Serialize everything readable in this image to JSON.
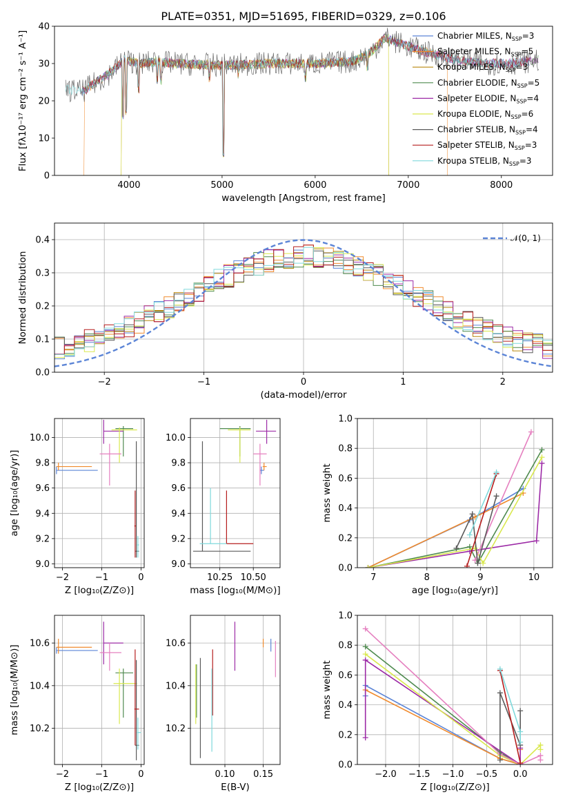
{
  "title": "PLATE=0351, MJD=51695, FIBERID=0329, z=0.106",
  "palette": {
    "Chabrier MILES": "#5b84d6",
    "Salpeter MILES": "#f08a2c",
    "Kroupa MILES": "#b8860b",
    "Chabrier ELODIE": "#4e8a4e",
    "Salpeter ELODIE": "#9c2aa6",
    "Kroupa ELODIE": "#d9e84e",
    "Chabrier STELIB": "#5a5a5a",
    "Salpeter STELIB": "#b51d1d",
    "Kroupa STELIB": "#7fd9db"
  },
  "chart_data": [
    {
      "id": "spectrum",
      "type": "line",
      "xlabel": "wavelength [Angstrom, rest frame]",
      "ylabel": "Flux [fλ10⁻¹⁷ erg cm⁻² s⁻¹ A⁻¹]",
      "xlim": [
        3200,
        8550
      ],
      "ylim": [
        0,
        40
      ],
      "xticks": [
        "4000",
        "5000",
        "6000",
        "7000",
        "8000"
      ],
      "yticks": [
        "0",
        "10",
        "20",
        "30",
        "40"
      ],
      "grid": false,
      "legend_position": "top-right",
      "legend": [
        {
          "name": "Chabrier MILES, N",
          "sub": "SSP",
          "tail": "=3",
          "key": "Chabrier MILES"
        },
        {
          "name": "Salpeter MILES, N",
          "sub": "SSP",
          "tail": "=5",
          "key": "Salpeter MILES"
        },
        {
          "name": "Kroupa MILES, N",
          "sub": "SSP",
          "tail": "=3",
          "key": "Kroupa MILES"
        },
        {
          "name": "Chabrier ELODIE, N",
          "sub": "SSP",
          "tail": "=5",
          "key": "Chabrier ELODIE"
        },
        {
          "name": "Salpeter ELODIE, N",
          "sub": "SSP",
          "tail": "=4",
          "key": "Salpeter ELODIE"
        },
        {
          "name": "Kroupa ELODIE, N",
          "sub": "SSP",
          "tail": "=6",
          "key": "Kroupa ELODIE"
        },
        {
          "name": "Chabrier STELIB, N",
          "sub": "SSP",
          "tail": "=4",
          "key": "Chabrier STELIB"
        },
        {
          "name": "Salpeter STELIB, N",
          "sub": "SSP",
          "tail": "=3",
          "key": "Salpeter STELIB"
        },
        {
          "name": "Kroupa STELIB, N",
          "sub": "SSP",
          "tail": "=3",
          "key": "Kroupa STELIB"
        }
      ],
      "continuum": [
        [
          3320,
          23
        ],
        [
          3500,
          22.5
        ],
        [
          3650,
          25
        ],
        [
          3800,
          27.5
        ],
        [
          3950,
          31
        ],
        [
          4100,
          30
        ],
        [
          4300,
          30.5
        ],
        [
          4500,
          30
        ],
        [
          5000,
          29.5
        ],
        [
          5500,
          30
        ],
        [
          6000,
          30
        ],
        [
          6400,
          30.5
        ],
        [
          6600,
          33
        ],
        [
          6750,
          37
        ],
        [
          6950,
          35
        ],
        [
          7200,
          33
        ],
        [
          7500,
          31
        ],
        [
          7800,
          30
        ],
        [
          8100,
          30
        ],
        [
          8400,
          31
        ]
      ],
      "absorption_lines": [
        [
          3934,
          15
        ],
        [
          3969,
          16
        ],
        [
          4102,
          22
        ],
        [
          4304,
          24
        ],
        [
          4341,
          24
        ],
        [
          4861,
          25
        ],
        [
          5015,
          4
        ],
        [
          5176,
          26
        ],
        [
          5893,
          25
        ],
        [
          6563,
          28
        ]
      ],
      "series_cuts": [
        {
          "key": "Salpeter MILES",
          "from": 3520,
          "to": 7420
        },
        {
          "key": "Kroupa MILES",
          "from": 3920,
          "to": 6790
        },
        {
          "key": "Kroupa ELODIE",
          "from": 3920,
          "to": 6790
        }
      ]
    },
    {
      "id": "residuals",
      "type": "histogram",
      "xlabel": "(data-model)/error",
      "ylabel": "Normed distribution",
      "xlim": [
        -2.5,
        2.5
      ],
      "ylim": [
        0,
        0.45
      ],
      "xticks": [
        "−2",
        "−1",
        "0",
        "1",
        "2"
      ],
      "yticks": [
        "0.0",
        "0.1",
        "0.2",
        "0.3",
        "0.4"
      ],
      "grid": true,
      "legend": [
        {
          "name": "𝒩(0, 1)",
          "style": "dashed"
        }
      ],
      "bin_width": 0.1,
      "normal_curve": {
        "mean": 0,
        "sigma": 1,
        "color": "#5b84d6"
      }
    },
    {
      "id": "age_vs_Z",
      "type": "errorbar",
      "xlabel": "Z [log₁₀(Z/Z⊙)]",
      "ylabel": "age  [log₁₀(age/yr)]",
      "xlim": [
        -2.2,
        0.08
      ],
      "ylim": [
        8.97,
        10.15
      ],
      "xticks": [
        "−2",
        "−1",
        "0"
      ],
      "yticks": [
        "9.0",
        "9.2",
        "9.4",
        "9.6",
        "9.8",
        "10.0"
      ],
      "grid": true,
      "points": [
        {
          "key": "Chabrier MILES",
          "x": -2.15,
          "xmin": -2.15,
          "xmax": -1.1,
          "y": 9.74,
          "ymin": 9.71,
          "ymax": 9.77
        },
        {
          "key": "Salpeter MILES",
          "x": -2.1,
          "xmin": -2.15,
          "xmax": -1.25,
          "y": 9.77,
          "ymin": 9.74,
          "ymax": 9.8
        },
        {
          "key": "Chabrier ELODIE",
          "x": -0.45,
          "xmin": -0.65,
          "xmax": -0.2,
          "y": 10.07,
          "ymin": 9.85,
          "ymax": 10.09
        },
        {
          "key": "Salpeter ELODIE",
          "x": -0.95,
          "xmin": -0.95,
          "xmax": -0.45,
          "y": 10.05,
          "ymin": 9.95,
          "ymax": 10.14
        },
        {
          "key": "Kroupa ELODIE",
          "x": -0.55,
          "xmin": -0.75,
          "xmax": -0.1,
          "y": 10.06,
          "ymin": 9.8,
          "ymax": 10.08
        },
        {
          "key": "Salpeter ELODIE",
          "x": -0.8,
          "xmin": -1.05,
          "xmax": -0.5,
          "y": 9.87,
          "ymin": 9.62,
          "ymax": 9.95,
          "color": "#e57fbf"
        },
        {
          "key": "Chabrier STELIB",
          "x": -0.12,
          "xmin": -0.15,
          "xmax": -0.05,
          "y": 9.1,
          "ymin": 9.05,
          "ymax": 9.97
        },
        {
          "key": "Salpeter STELIB",
          "x": -0.15,
          "xmin": -0.17,
          "xmax": -0.13,
          "y": 9.3,
          "ymin": 9.05,
          "ymax": 9.58
        },
        {
          "key": "Kroupa STELIB",
          "x": -0.08,
          "xmin": -0.1,
          "xmax": -0.05,
          "y": 9.15,
          "ymin": 9.05,
          "ymax": 9.22
        }
      ]
    },
    {
      "id": "age_vs_mass",
      "type": "errorbar",
      "xlabel": "mass [log₁₀(M/M⊙)]",
      "ylabel": "",
      "xlim": [
        10.03,
        10.7
      ],
      "ylim": [
        8.97,
        10.15
      ],
      "xticks": [
        "10.25",
        "10.50"
      ],
      "yticks": [
        "9.0",
        "9.2",
        "9.4",
        "9.6",
        "9.8",
        "10.0"
      ],
      "grid": true,
      "points": [
        {
          "key": "Chabrier MILES",
          "x": 10.56,
          "xmin": 10.55,
          "xmax": 10.58,
          "y": 9.74,
          "ymin": 9.71,
          "ymax": 9.77
        },
        {
          "key": "Salpeter MILES",
          "x": 10.58,
          "xmin": 10.57,
          "xmax": 10.6,
          "y": 9.77,
          "ymin": 9.74,
          "ymax": 9.8
        },
        {
          "key": "Chabrier ELODIE",
          "x": 10.4,
          "xmin": 10.25,
          "xmax": 10.48,
          "y": 10.07,
          "ymin": 9.85,
          "ymax": 10.09
        },
        {
          "key": "Salpeter ELODIE",
          "x": 10.6,
          "xmin": 10.52,
          "xmax": 10.67,
          "y": 10.05,
          "ymin": 9.95,
          "ymax": 10.14
        },
        {
          "key": "Kroupa ELODIE",
          "x": 10.4,
          "xmin": 10.31,
          "xmax": 10.48,
          "y": 10.06,
          "ymin": 9.8,
          "ymax": 10.08
        },
        {
          "key": "Salpeter ELODIE",
          "x": 10.55,
          "xmin": 10.5,
          "xmax": 10.6,
          "y": 9.87,
          "ymin": 9.62,
          "ymax": 9.95,
          "color": "#e57fbf"
        },
        {
          "key": "Chabrier STELIB",
          "x": 10.12,
          "xmin": 10.05,
          "xmax": 10.48,
          "y": 9.1,
          "ymin": 9.1,
          "ymax": 9.97
        },
        {
          "key": "Salpeter STELIB",
          "x": 10.3,
          "xmin": 10.3,
          "xmax": 10.5,
          "y": 9.16,
          "ymin": 9.16,
          "ymax": 9.58
        },
        {
          "key": "Kroupa STELIB",
          "x": 10.18,
          "xmin": 10.1,
          "xmax": 10.3,
          "y": 9.16,
          "ymin": 9.16,
          "ymax": 9.6
        }
      ]
    },
    {
      "id": "weight_vs_age",
      "type": "line",
      "xlabel": "age  [log₁₀(age/yr)]",
      "ylabel": "mass weight",
      "xlim": [
        6.7,
        10.35
      ],
      "ylim": [
        0,
        1
      ],
      "xticks": [
        "7",
        "8",
        "9",
        "10"
      ],
      "yticks": [
        "0.0",
        "0.2",
        "0.4",
        "0.6",
        "0.8",
        "1.0"
      ],
      "grid": true,
      "series": [
        {
          "key": "Chabrier MILES",
          "x": [
            6.9,
            8.8,
            9.8
          ],
          "y": [
            0.0,
            0.32,
            0.53
          ]
        },
        {
          "key": "Salpeter MILES",
          "x": [
            6.9,
            8.9,
            9.8
          ],
          "y": [
            0.0,
            0.34,
            0.5
          ]
        },
        {
          "key": "Chabrier ELODIE",
          "x": [
            6.9,
            8.8,
            8.95,
            10.15
          ],
          "y": [
            0.0,
            0.14,
            0.03,
            0.79
          ]
        },
        {
          "key": "Salpeter ELODIE",
          "x": [
            6.9,
            8.8,
            10.05,
            10.15
          ],
          "y": [
            0.0,
            0.11,
            0.18,
            0.7
          ]
        },
        {
          "key": "Kroupa ELODIE",
          "x": [
            6.9,
            8.9,
            9.05,
            10.15
          ],
          "y": [
            0.0,
            0.13,
            0.03,
            0.74
          ]
        },
        {
          "key": "Salpeter ELODIE",
          "x": [
            8.9,
            9.95
          ],
          "y": [
            0.05,
            0.91
          ],
          "color": "#e57fbf"
        },
        {
          "key": "Chabrier STELIB",
          "x": [
            8.55,
            8.85,
            8.95,
            9.3
          ],
          "y": [
            0.13,
            0.36,
            0.03,
            0.48
          ]
        },
        {
          "key": "Salpeter STELIB",
          "x": [
            8.75,
            9.3
          ],
          "y": [
            0.01,
            0.63
          ]
        },
        {
          "key": "Kroupa STELIB",
          "x": [
            8.8,
            9.3
          ],
          "y": [
            0.22,
            0.64
          ]
        }
      ]
    },
    {
      "id": "mass_vs_Z",
      "type": "errorbar",
      "xlabel": "Z [log₁₀(Z/Z⊙)]",
      "ylabel": "mass [log₁₀(M/M⊙)]",
      "xlim": [
        -2.2,
        0.08
      ],
      "ylim": [
        10.03,
        10.73
      ],
      "xticks": [
        "−2",
        "−1",
        "0"
      ],
      "yticks": [
        "10.2",
        "10.4",
        "10.6"
      ],
      "grid": true,
      "points": [
        {
          "key": "Chabrier MILES",
          "x": -2.15,
          "xmin": -2.15,
          "xmax": -1.1,
          "y": 10.565,
          "ymin": 10.55,
          "ymax": 10.58
        },
        {
          "key": "Salpeter MILES",
          "x": -2.1,
          "xmin": -2.15,
          "xmax": -1.25,
          "y": 10.58,
          "ymin": 10.55,
          "ymax": 10.62
        },
        {
          "key": "Chabrier ELODIE",
          "x": -0.45,
          "xmin": -0.65,
          "xmax": -0.2,
          "y": 10.46,
          "ymin": 10.25,
          "ymax": 10.48
        },
        {
          "key": "Salpeter ELODIE",
          "x": -0.95,
          "xmin": -0.95,
          "xmax": -0.45,
          "y": 10.6,
          "ymin": 10.5,
          "ymax": 10.7
        },
        {
          "key": "Kroupa ELODIE",
          "x": -0.55,
          "xmin": -0.7,
          "xmax": -0.1,
          "y": 10.41,
          "ymin": 10.22,
          "ymax": 10.48
        },
        {
          "key": "Salpeter ELODIE",
          "x": -0.8,
          "xmin": -1.05,
          "xmax": -0.5,
          "y": 10.555,
          "ymin": 10.47,
          "ymax": 10.6,
          "color": "#e57fbf"
        },
        {
          "key": "Chabrier STELIB",
          "x": -0.12,
          "xmin": -0.15,
          "xmax": -0.05,
          "y": 10.12,
          "ymin": 10.05,
          "ymax": 10.52
        },
        {
          "key": "Salpeter STELIB",
          "x": -0.15,
          "xmin": -0.17,
          "xmax": -0.05,
          "y": 10.29,
          "ymin": 10.12,
          "ymax": 10.57
        },
        {
          "key": "Kroupa STELIB",
          "x": -0.08,
          "xmin": -0.1,
          "xmax": 0.0,
          "y": 10.18,
          "ymin": 10.1,
          "ymax": 10.25
        }
      ]
    },
    {
      "id": "mass_vs_EBV",
      "type": "errorbar",
      "xlabel": "E(B-V)",
      "ylabel": "",
      "xlim": [
        0.055,
        0.172
      ],
      "ylim": [
        10.03,
        10.73
      ],
      "xticks": [
        "0.10",
        "0.15"
      ],
      "yticks": [
        "10.2",
        "10.4",
        "10.6"
      ],
      "grid": true,
      "points": [
        {
          "key": "Chabrier MILES",
          "x": 0.16,
          "xmin": 0.16,
          "xmax": 0.16,
          "y": 10.6,
          "ymin": 10.56,
          "ymax": 10.62
        },
        {
          "key": "Salpeter MILES",
          "x": 0.15,
          "xmin": 0.15,
          "xmax": 0.15,
          "y": 10.6,
          "ymin": 10.58,
          "ymax": 10.62
        },
        {
          "key": "Chabrier ELODIE",
          "x": 0.063,
          "xmin": 0.063,
          "xmax": 0.063,
          "y": 10.4,
          "ymin": 10.25,
          "ymax": 10.5
        },
        {
          "key": "Salpeter ELODIE",
          "x": 0.113,
          "xmin": 0.113,
          "xmax": 0.113,
          "y": 10.6,
          "ymin": 10.47,
          "ymax": 10.7
        },
        {
          "key": "Kroupa ELODIE",
          "x": 0.062,
          "xmin": 0.062,
          "xmax": 0.062,
          "y": 10.36,
          "ymin": 10.22,
          "ymax": 10.5
        },
        {
          "key": "Salpeter ELODIE",
          "x": 0.166,
          "xmin": 0.166,
          "xmax": 0.166,
          "y": 10.55,
          "ymin": 10.44,
          "ymax": 10.61,
          "color": "#e57fbf"
        },
        {
          "key": "Chabrier STELIB",
          "x": 0.068,
          "xmin": 0.068,
          "xmax": 0.068,
          "y": 10.3,
          "ymin": 10.06,
          "ymax": 10.53
        },
        {
          "key": "Salpeter STELIB",
          "x": 0.084,
          "xmin": 0.084,
          "xmax": 0.084,
          "y": 10.4,
          "ymin": 10.26,
          "ymax": 10.57
        },
        {
          "key": "Kroupa STELIB",
          "x": 0.083,
          "xmin": 0.083,
          "xmax": 0.083,
          "y": 10.2,
          "ymin": 10.09,
          "ymax": 10.48
        }
      ]
    },
    {
      "id": "weight_vs_Z",
      "type": "line",
      "xlabel": "Z [log₁₀(Z/Z⊙)]",
      "ylabel": "mass weight",
      "xlim": [
        -2.42,
        0.48
      ],
      "ylim": [
        0,
        1
      ],
      "xticks": [
        "−2.0",
        "−1.5",
        "−1.0",
        "−0.5",
        "0.0"
      ],
      "yticks": [
        "0.0",
        "0.2",
        "0.4",
        "0.6",
        "0.8",
        "1.0"
      ],
      "grid": true,
      "series": [
        {
          "key": "Chabrier MILES",
          "x": [
            -2.3,
            -2.3,
            -0.3,
            0.0
          ],
          "y": [
            0.46,
            0.53,
            0.04,
            0.0
          ]
        },
        {
          "key": "Salpeter MILES",
          "x": [
            -2.3,
            -0.3,
            0.0,
            0.0
          ],
          "y": [
            0.5,
            0.04,
            0.0,
            0.1
          ]
        },
        {
          "key": "Chabrier ELODIE",
          "x": [
            -2.3,
            -0.3,
            0.0
          ],
          "y": [
            0.79,
            0.08,
            0.0
          ]
        },
        {
          "key": "Salpeter ELODIE",
          "x": [
            -2.3,
            -2.3,
            0.0,
            0.0
          ],
          "y": [
            0.18,
            0.7,
            0.0,
            0.11
          ]
        },
        {
          "key": "Kroupa ELODIE",
          "x": [
            -2.3,
            -0.3,
            0.0,
            0.3,
            0.3
          ],
          "y": [
            0.74,
            0.06,
            0.0,
            0.13,
            0.1
          ]
        },
        {
          "key": "Salpeter ELODIE",
          "x": [
            -2.3,
            -0.3,
            0.0,
            0.3,
            0.3
          ],
          "y": [
            0.91,
            0.07,
            0.0,
            0.06,
            0.03
          ],
          "color": "#e57fbf"
        },
        {
          "key": "Chabrier STELIB",
          "x": [
            -0.3,
            -0.3,
            0.0,
            0.0
          ],
          "y": [
            0.03,
            0.48,
            0.13,
            0.36
          ]
        },
        {
          "key": "Salpeter STELIB",
          "x": [
            -0.3,
            0.0
          ],
          "y": [
            0.63,
            0.01
          ]
        },
        {
          "key": "Kroupa STELIB",
          "x": [
            -0.3,
            0.0,
            0.0
          ],
          "y": [
            0.64,
            0.22,
            0.15
          ]
        }
      ]
    }
  ]
}
